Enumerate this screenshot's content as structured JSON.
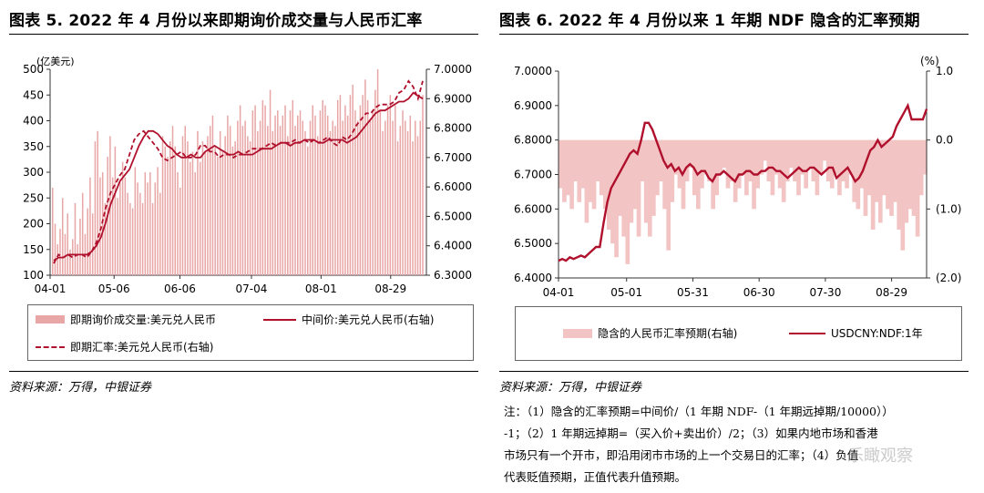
{
  "left": {
    "title": "图表 5. 2022 年 4 月份以来即期询价成交量与人民币汇率",
    "unit_label": "(亿美元)",
    "source": "资料来源：万得，中银证券",
    "legend": {
      "bar": "即期询价成交量:美元兑人民币",
      "mid": "中间价:美元兑人民币(右轴)",
      "spot": "即期汇率:美元兑人民币(右轴)"
    }
  },
  "right": {
    "title": "图表 6. 2022 年 4 月份以来 1 年期 NDF 隐含的汇率预期",
    "unit_label": "(%)",
    "source": "资料来源：万得，中银证券",
    "legend": {
      "area": "隐含的人民币汇率预期(右轴)",
      "line": "USDCNY:NDF:1年"
    },
    "note_lines": [
      "注：（1）隐含的汇率预期=中间价/（1 年期 NDF-（1 年期远掉期/10000））",
      "-1；（2）1 年期远掉期=（买入价+卖出价）/2；（3）如果内地市场和香港",
      "市场只有一个开市，即沿用闭市市场的上一个交易日的汇率；（4）负值",
      "代表贬值预期，正值代表升值预期。"
    ]
  },
  "watermark": "乐瞰观察",
  "colors": {
    "bar": "#e8a6a6",
    "line": "#b0102c",
    "area": "#f2c4c4"
  },
  "chart_data": [
    {
      "type": "bar",
      "title": "2022 年 4 月份以来即期询价成交量与人民币汇率",
      "x_ticks": [
        "04-01",
        "05-06",
        "06-06",
        "07-04",
        "08-01",
        "08-29"
      ],
      "y_left": {
        "label": "(亿美元)",
        "range": [
          100,
          500
        ],
        "ticks": [
          100,
          150,
          200,
          250,
          300,
          350,
          400,
          450,
          500
        ]
      },
      "y_right": {
        "range": [
          6.3,
          7.0
        ],
        "ticks": [
          "6.3000",
          "6.4000",
          "6.5000",
          "6.6000",
          "6.7000",
          "6.8000",
          "6.9000",
          "7.0000"
        ]
      },
      "volume": [
        270,
        200,
        160,
        190,
        250,
        180,
        220,
        150,
        170,
        240,
        160,
        210,
        260,
        180,
        230,
        290,
        220,
        360,
        380,
        290,
        300,
        240,
        330,
        370,
        290,
        350,
        250,
        280,
        320,
        290,
        260,
        240,
        230,
        310,
        280,
        260,
        240,
        300,
        280,
        300,
        240,
        280,
        310,
        260,
        370,
        350,
        330,
        360,
        390,
        350,
        300,
        270,
        370,
        390,
        360,
        320,
        340,
        300,
        380,
        320,
        360,
        340,
        370,
        390,
        410,
        350,
        330,
        380,
        340,
        370,
        410,
        390,
        350,
        360,
        400,
        430,
        390,
        400,
        370,
        360,
        420,
        430,
        380,
        400,
        440,
        430,
        390,
        460,
        380,
        410,
        420,
        390,
        410,
        430,
        370,
        420,
        440,
        390,
        410,
        420,
        400,
        380,
        350,
        400,
        430,
        410,
        370,
        420,
        440,
        430,
        410,
        380,
        400,
        390,
        440,
        450,
        400,
        430,
        410,
        450,
        470,
        420,
        400,
        430,
        450,
        480,
        440,
        400,
        420,
        460,
        500,
        420,
        380,
        400,
        430,
        450,
        400,
        430,
        360,
        390,
        420,
        400,
        380,
        410,
        360,
        400,
        370,
        400,
        450
      ],
      "series": [
        {
          "name": "中间价:美元兑人民币(右轴)",
          "values": [
            6.35,
            6.36,
            6.36,
            6.37,
            6.37,
            6.37,
            6.37,
            6.37,
            6.38,
            6.4,
            6.43,
            6.48,
            6.54,
            6.58,
            6.62,
            6.64,
            6.66,
            6.7,
            6.74,
            6.77,
            6.79,
            6.79,
            6.78,
            6.76,
            6.74,
            6.73,
            6.71,
            6.7,
            6.7,
            6.71,
            6.7,
            6.7,
            6.72,
            6.73,
            6.74,
            6.73,
            6.72,
            6.71,
            6.71,
            6.72,
            6.71,
            6.71,
            6.71,
            6.72,
            6.73,
            6.73,
            6.73,
            6.74,
            6.75,
            6.75,
            6.74,
            6.75,
            6.75,
            6.76,
            6.76,
            6.76,
            6.75,
            6.75,
            6.76,
            6.76,
            6.76,
            6.76,
            6.75,
            6.76,
            6.77,
            6.79,
            6.81,
            6.83,
            6.85,
            6.86,
            6.86,
            6.87,
            6.88,
            6.89,
            6.89,
            6.9,
            6.92,
            6.91,
            6.9
          ]
        },
        {
          "name": "即期汇率:美元兑人民币(右轴)",
          "values": [
            6.34,
            6.37,
            6.36,
            6.37,
            6.36,
            6.37,
            6.37,
            6.36,
            6.38,
            6.41,
            6.46,
            6.53,
            6.58,
            6.61,
            6.64,
            6.66,
            6.71,
            6.76,
            6.78,
            6.79,
            6.77,
            6.75,
            6.73,
            6.7,
            6.69,
            6.7,
            6.71,
            6.72,
            6.7,
            6.7,
            6.71,
            6.74,
            6.74,
            6.72,
            6.72,
            6.7,
            6.71,
            6.71,
            6.7,
            6.71,
            6.71,
            6.72,
            6.73,
            6.73,
            6.73,
            6.74,
            6.75,
            6.74,
            6.75,
            6.75,
            6.75,
            6.76,
            6.75,
            6.76,
            6.75,
            6.76,
            6.75,
            6.76,
            6.77,
            6.75,
            6.74,
            6.77,
            6.76,
            6.78,
            6.81,
            6.83,
            6.85,
            6.85,
            6.87,
            6.88,
            6.88,
            6.88,
            6.89,
            6.92,
            6.93,
            6.96,
            6.94,
            6.9,
            6.96
          ]
        }
      ]
    },
    {
      "type": "line",
      "title": "2022 年 4 月份以来 1 年期 NDF 隐含的汇率预期",
      "x_ticks": [
        "04-01",
        "05-01",
        "05-31",
        "06-30",
        "07-30",
        "08-29"
      ],
      "y_left": {
        "range": [
          6.4,
          7.0
        ],
        "ticks": [
          "6.4000",
          "6.5000",
          "6.6000",
          "6.7000",
          "6.8000",
          "6.9000",
          "7.0000"
        ]
      },
      "y_right": {
        "label": "(%)",
        "range": [
          -2.0,
          1.0
        ],
        "ticks": [
          "(2.0)",
          "(1.0)",
          "0.0",
          "1.0"
        ]
      },
      "series": [
        {
          "name": "USDCNY:NDF:1年",
          "values": [
            6.45,
            6.455,
            6.45,
            6.46,
            6.455,
            6.46,
            6.465,
            6.46,
            6.47,
            6.48,
            6.49,
            6.49,
            6.56,
            6.62,
            6.66,
            6.68,
            6.7,
            6.72,
            6.74,
            6.76,
            6.77,
            6.76,
            6.8,
            6.85,
            6.85,
            6.83,
            6.8,
            6.77,
            6.74,
            6.72,
            6.73,
            6.71,
            6.72,
            6.7,
            6.72,
            6.73,
            6.72,
            6.7,
            6.71,
            6.71,
            6.69,
            6.68,
            6.7,
            6.7,
            6.71,
            6.7,
            6.69,
            6.68,
            6.7,
            6.7,
            6.71,
            6.71,
            6.7,
            6.7,
            6.71,
            6.71,
            6.72,
            6.72,
            6.71,
            6.71,
            6.7,
            6.69,
            6.7,
            6.71,
            6.72,
            6.71,
            6.71,
            6.72,
            6.72,
            6.71,
            6.7,
            6.71,
            6.72,
            6.72,
            6.69,
            6.7,
            6.71,
            6.72,
            6.7,
            6.68,
            6.69,
            6.71,
            6.74,
            6.77,
            6.78,
            6.8,
            6.78,
            6.79,
            6.8,
            6.81,
            6.84,
            6.86,
            6.88,
            6.9,
            6.86,
            6.86,
            6.86,
            6.86,
            6.89
          ]
        },
        {
          "name": "隐含的人民币汇率预期(右轴)",
          "values": [
            -0.7,
            -0.9,
            -0.8,
            -1.0,
            -0.6,
            -0.9,
            -0.7,
            -1.2,
            -0.9,
            -1.0,
            -0.6,
            -0.8,
            -1.0,
            -1.3,
            -1.5,
            -1.7,
            -1.1,
            -1.4,
            -1.8,
            -1.2,
            -1.0,
            -1.4,
            -0.6,
            -1.2,
            -1.4,
            -1.1,
            -0.8,
            -0.6,
            -1.0,
            -1.6,
            -0.9,
            -0.5,
            -0.7,
            -1.0,
            -0.6,
            -0.4,
            -0.8,
            -1.0,
            -0.7,
            -0.5,
            -0.6,
            -1.0,
            -0.8,
            -0.5,
            -0.4,
            -0.7,
            -0.6,
            -0.9,
            -0.7,
            -0.5,
            -0.8,
            -0.6,
            -1.0,
            -0.7,
            -0.5,
            -0.3,
            -0.6,
            -0.8,
            -0.5,
            -0.7,
            -0.9,
            -0.6,
            -0.4,
            -0.6,
            -0.8,
            -0.5,
            -0.7,
            -0.4,
            -0.6,
            -0.8,
            -0.5,
            -0.3,
            -0.6,
            -0.7,
            -0.5,
            -0.8,
            -0.6,
            -0.7,
            -0.5,
            -0.9,
            -1.0,
            -0.7,
            -1.1,
            -0.8,
            -1.3,
            -0.9,
            -1.2,
            -0.8,
            -1.0,
            -1.1,
            -0.9,
            -1.3,
            -1.6,
            -1.2,
            -1.0,
            -1.1,
            -1.4,
            -0.8,
            -0.5
          ]
        }
      ]
    }
  ]
}
